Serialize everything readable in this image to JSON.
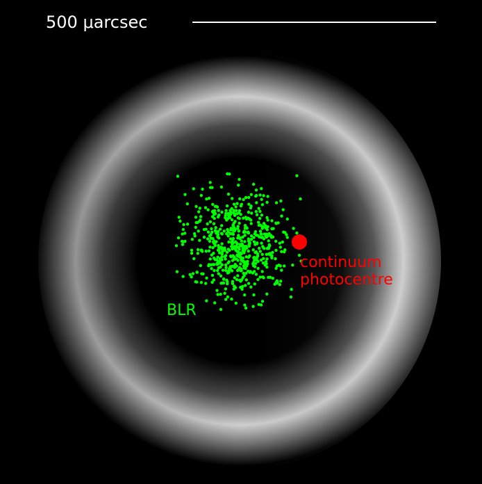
{
  "scale_bar": {
    "label": "500 μarcsec",
    "color": "#ffffff"
  },
  "blr": {
    "label": "BLR",
    "color": "#00ff00",
    "cloud_count": 620
  },
  "photocentre": {
    "label_line1": "continuum",
    "label_line2": "photocentre",
    "color": "#ff0000"
  },
  "torus": {
    "glow_color": "#ffffff",
    "background_color": "#000000"
  }
}
